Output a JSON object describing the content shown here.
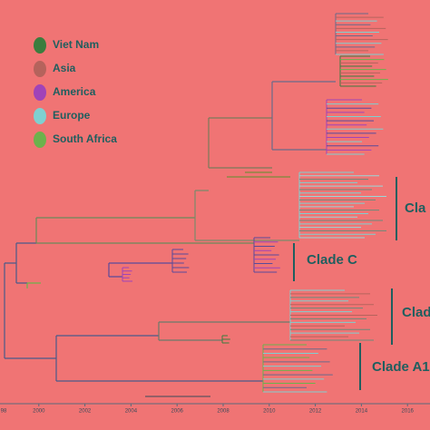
{
  "legend": [
    {
      "label": "Viet Nam",
      "color": "#3b7d3e"
    },
    {
      "label": "Asia",
      "color": "#b5635c"
    },
    {
      "label": "America",
      "color": "#a043b8"
    },
    {
      "label": "Europe",
      "color": "#7fd0d0"
    },
    {
      "label": "South Africa",
      "color": "#6cb24c"
    }
  ],
  "clades": [
    "Cla",
    "Clade C",
    "Clad",
    "Clade A1"
  ],
  "axis": {
    "ticks": [
      "98",
      "2000",
      "2002",
      "2004",
      "2006",
      "2008",
      "2010",
      "2012",
      "2014",
      "2016"
    ]
  }
}
